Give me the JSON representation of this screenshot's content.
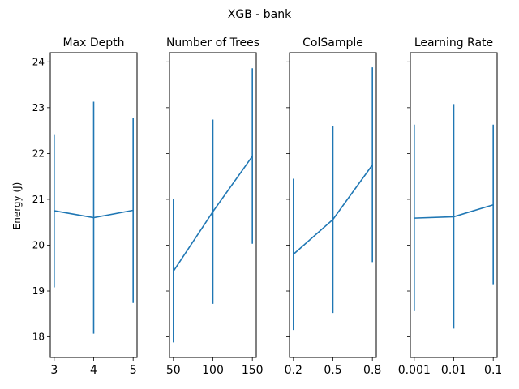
{
  "chart_data": {
    "suptitle": "XGB - bank",
    "ylabel": "Energy (J)",
    "ylim": [
      17.55,
      24.2
    ],
    "yticks": [
      18,
      19,
      20,
      21,
      22,
      23,
      24
    ],
    "color": "#1f77b4",
    "panels": [
      {
        "type": "line",
        "title": "Max Depth",
        "x": [
          3,
          4,
          5
        ],
        "x_labels": [
          "3",
          "4",
          "5"
        ],
        "y": [
          20.75,
          20.6,
          20.76
        ],
        "err_low": [
          19.08,
          18.07,
          18.74
        ],
        "err_high": [
          22.42,
          23.13,
          22.78
        ]
      },
      {
        "type": "line",
        "title": "Number of Trees",
        "x": [
          50,
          100,
          150
        ],
        "x_labels": [
          "50",
          "100",
          "150"
        ],
        "y": [
          19.43,
          20.73,
          21.94
        ],
        "err_low": [
          17.88,
          18.72,
          20.03
        ],
        "err_high": [
          21.0,
          22.74,
          23.86
        ]
      },
      {
        "type": "line",
        "title": "ColSample",
        "x": [
          0.2,
          0.5,
          0.8
        ],
        "x_labels": [
          "0.2",
          "0.5",
          "0.8"
        ],
        "y": [
          19.8,
          20.56,
          21.75
        ],
        "err_low": [
          18.15,
          18.52,
          19.63
        ],
        "err_high": [
          21.45,
          22.6,
          23.88
        ]
      },
      {
        "type": "line",
        "title": "Learning Rate",
        "x": [
          0.001,
          0.01,
          0.1
        ],
        "x_labels": [
          "0.001",
          "0.01",
          "0.1"
        ],
        "y": [
          20.59,
          20.62,
          20.88
        ],
        "err_low": [
          18.56,
          18.18,
          19.13
        ],
        "err_high": [
          22.63,
          23.08,
          22.63
        ]
      }
    ]
  }
}
